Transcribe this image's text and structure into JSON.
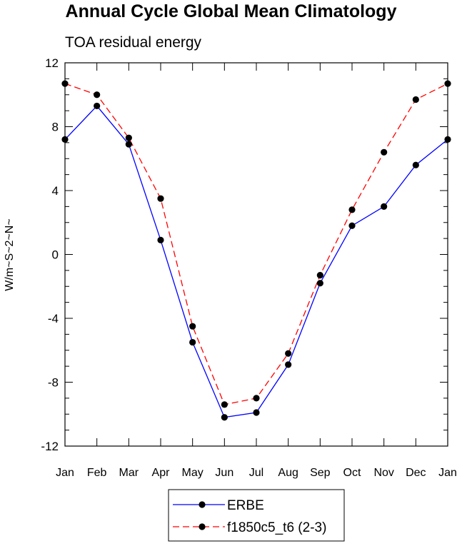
{
  "chart_data": {
    "type": "line",
    "title": "Annual Cycle Global Mean Climatology",
    "subtitle": "TOA residual energy",
    "xlabel": "",
    "ylabel": "W/m~S~2~N~",
    "categories": [
      "Jan",
      "Feb",
      "Mar",
      "Apr",
      "May",
      "Jun",
      "Jul",
      "Aug",
      "Sep",
      "Oct",
      "Nov",
      "Dec",
      "Jan"
    ],
    "ylim": [
      -12,
      12
    ],
    "yticks": [
      "-12",
      "-8",
      "-4",
      "0",
      "4",
      "8",
      "12"
    ],
    "series": [
      {
        "name": "ERBE",
        "color": "#0000ff",
        "dash": "solid",
        "values": [
          7.2,
          9.3,
          6.9,
          0.9,
          -5.5,
          -10.2,
          -9.9,
          -6.9,
          -1.8,
          1.8,
          3.0,
          5.6,
          7.2
        ]
      },
      {
        "name": "f1850c5_t6 (2-3)",
        "color": "#ff0000",
        "dash": "dashed",
        "values": [
          10.7,
          10.0,
          7.3,
          3.5,
          -4.5,
          -9.4,
          -9.0,
          -6.2,
          -1.3,
          2.8,
          6.4,
          9.7,
          10.7
        ]
      }
    ],
    "legend_position": "bottom-center",
    "grid": false
  }
}
